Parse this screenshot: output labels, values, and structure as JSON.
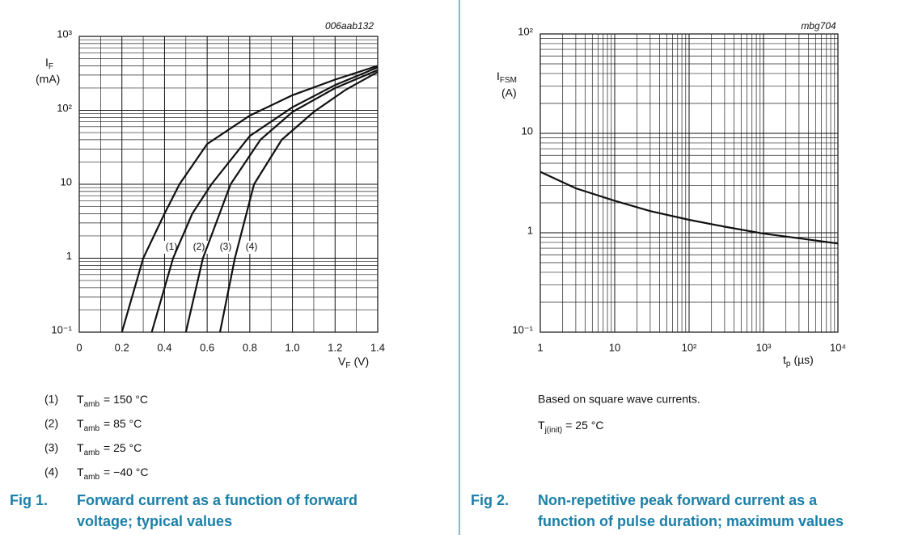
{
  "chart_data": [
    {
      "type": "line",
      "code": "006aab132",
      "y_label": {
        "symbol": "I",
        "subscript": "F",
        "unit": "(mA)"
      },
      "x_label": {
        "symbol": "V",
        "subscript": "F",
        "unit": "(V)"
      },
      "xscale": "linear",
      "yscale": "log",
      "grid": true,
      "xlim": [
        0,
        1.4
      ],
      "xticks": [
        0,
        0.2,
        0.4,
        0.6,
        0.8,
        {
          "value": 1,
          "label": "1.0"
        },
        1.2,
        1.4
      ],
      "ylim": [
        0.1,
        1000
      ],
      "yticks": [
        {
          "value": 0.1,
          "label": "10⁻¹"
        },
        1,
        10,
        {
          "value": 100,
          "label": "10²"
        },
        {
          "value": 1000,
          "label": "10³"
        }
      ],
      "series": [
        {
          "name": "(1)",
          "color": "#111111",
          "condition": {
            "symbol": "T",
            "subscript": "amb",
            "value": "= 150 °C"
          },
          "x": [
            0.2,
            0.3,
            0.4,
            0.47,
            0.6,
            0.8,
            1.0,
            1.2,
            1.4
          ],
          "values": [
            0.1,
            1,
            4,
            10,
            35,
            85,
            160,
            260,
            400
          ]
        },
        {
          "name": "(2)",
          "color": "#111111",
          "condition": {
            "symbol": "T",
            "subscript": "amb",
            "value": "= 85 °C"
          },
          "x": [
            0.34,
            0.44,
            0.53,
            0.62,
            0.8,
            1.0,
            1.2,
            1.4
          ],
          "values": [
            0.1,
            1,
            4,
            10,
            45,
            110,
            220,
            380
          ]
        },
        {
          "name": "(3)",
          "color": "#111111",
          "condition": {
            "symbol": "T",
            "subscript": "amb",
            "value": "= 25 °C"
          },
          "x": [
            0.5,
            0.58,
            0.71,
            0.85,
            1.0,
            1.2,
            1.4
          ],
          "values": [
            0.1,
            1,
            10,
            40,
            95,
            200,
            350
          ]
        },
        {
          "name": "(4)",
          "color": "#111111",
          "condition": {
            "symbol": "T",
            "subscript": "amb",
            "value": "= −40 °C"
          },
          "x": [
            0.66,
            0.73,
            0.82,
            0.95,
            1.1,
            1.25,
            1.4
          ],
          "values": [
            0.1,
            1,
            10,
            40,
            95,
            190,
            330
          ]
        }
      ],
      "figure_label": "Fig 1.",
      "caption_lines": [
        "Forward current as a function of forward",
        "voltage; typical values"
      ]
    },
    {
      "type": "line",
      "code": "mbg704",
      "y_label": {
        "symbol": "I",
        "subscript": "FSM",
        "unit": "(A)"
      },
      "x_label": {
        "symbol": "t",
        "subscript": "p",
        "unit": "(µs)"
      },
      "xscale": "log",
      "yscale": "log",
      "grid": true,
      "xlim": [
        1,
        10000
      ],
      "xticks": [
        1,
        10,
        {
          "value": 100,
          "label": "10²"
        },
        {
          "value": 1000,
          "label": "10³"
        },
        {
          "value": 10000,
          "label": "10⁴"
        }
      ],
      "ylim": [
        0.1,
        100
      ],
      "yticks": [
        {
          "value": 0.1,
          "label": "10⁻¹"
        },
        1,
        10,
        {
          "value": 100,
          "label": "10²"
        }
      ],
      "series": [
        {
          "color": "#111111",
          "x": [
            1,
            3,
            10,
            30,
            100,
            300,
            1000,
            3000,
            10000
          ],
          "values": [
            4.1,
            2.8,
            2.1,
            1.65,
            1.35,
            1.15,
            0.98,
            0.88,
            0.78
          ]
        }
      ],
      "note": "Based on square wave currents.",
      "condition": {
        "symbol": "T",
        "subscript": "j(init)",
        "value": "= 25 °C"
      },
      "figure_label": "Fig 2.",
      "caption_lines": [
        "Non-repetitive peak forward current as a",
        "function of pulse duration; maximum values"
      ]
    }
  ]
}
